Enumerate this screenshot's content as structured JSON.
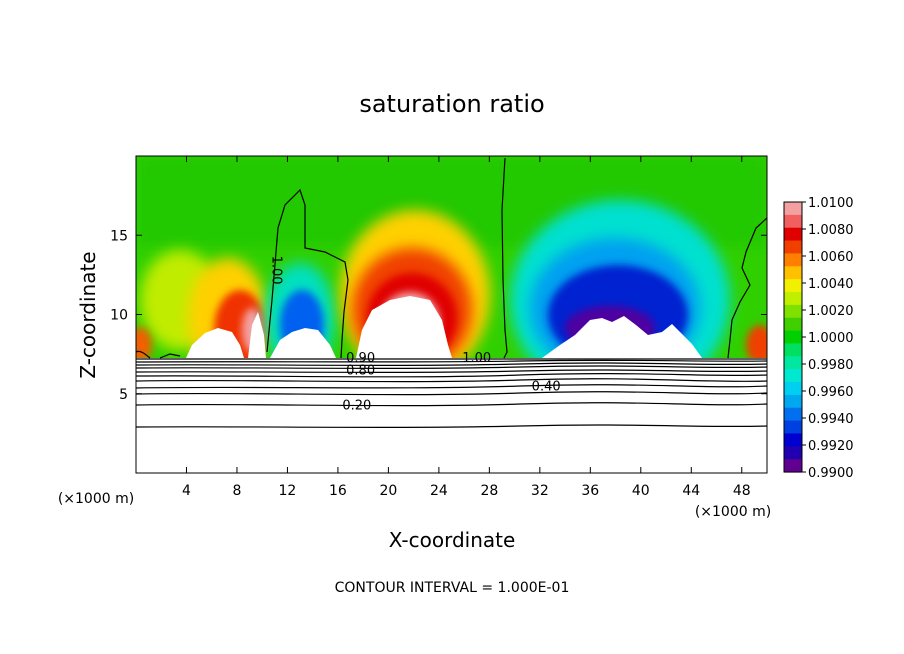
{
  "chart_data": {
    "type": "heatmap",
    "title": "saturation ratio",
    "xlabel": "X-coordinate",
    "ylabel": "Z-coordinate",
    "x_unit_left": "(×1000 m)",
    "x_unit_right": "(×1000 m)",
    "footer": "CONTOUR INTERVAL = 1.000E-01",
    "xlim": [
      0,
      50
    ],
    "ylim": [
      0,
      20
    ],
    "x_ticks": [
      4,
      8,
      12,
      16,
      20,
      24,
      28,
      32,
      36,
      40,
      44,
      48
    ],
    "y_ticks": [
      5,
      10,
      15
    ],
    "colorbar": {
      "min": 0.99,
      "max": 1.01,
      "tick_labels": [
        "1.0100",
        "1.0080",
        "1.0060",
        "1.0040",
        "1.0020",
        "1.0000",
        "0.9980",
        "0.9960",
        "0.9940",
        "0.9920",
        "0.9900"
      ],
      "colors": [
        "#f4a0a0",
        "#f06060",
        "#e00000",
        "#f04000",
        "#ff8000",
        "#ffc000",
        "#f0f000",
        "#c0f000",
        "#80e000",
        "#40d000",
        "#00d000",
        "#00e060",
        "#00e8a0",
        "#00e8d0",
        "#00d0f0",
        "#00a8f0",
        "#0070f0",
        "#0040e0",
        "#0000d0",
        "#2000b0",
        "#600090"
      ]
    },
    "contour_labels": [
      {
        "text": "1.00",
        "x": 10.8,
        "z": 12.8
      },
      {
        "text": "1.00",
        "x": 27.0,
        "z": 7.0
      },
      {
        "text": "0.90",
        "x": 17.8,
        "z": 7.0
      },
      {
        "text": "0.80",
        "x": 17.8,
        "z": 6.2
      },
      {
        "text": "0.40",
        "x": 32.5,
        "z": 5.2
      },
      {
        "text": "0.20",
        "x": 17.5,
        "z": 4.0
      }
    ]
  }
}
